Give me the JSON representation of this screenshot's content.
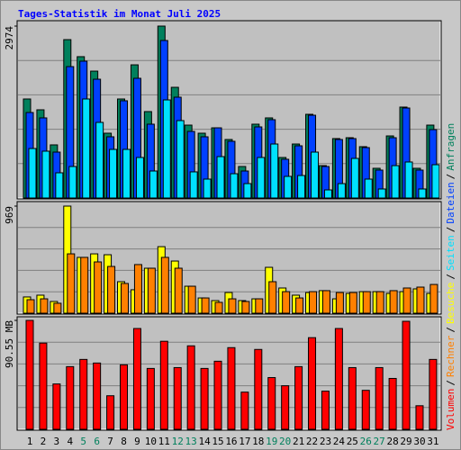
{
  "chart_data": [
    {
      "type": "bar",
      "title": "Tages-Statistik im Monat Juli 2025",
      "legend_separator": "/",
      "ylim": [
        0,
        2974
      ],
      "yticks": [
        2974
      ],
      "series": [
        {
          "name": "Anfragen",
          "color": "#00805c",
          "values": [
            1713,
            1526,
            919,
            2740,
            2445,
            2195,
            1121,
            1713,
            2304,
            1495,
            2974,
            1915,
            1261,
            1121,
            1214,
            1012,
            545,
            1277,
            1386,
            701,
            934,
            1448,
            560,
            1028,
            1043,
            888,
            514,
            1074,
            1573,
            514,
            1261
          ]
        },
        {
          "name": "Dateien",
          "color": "#0040ff",
          "values": [
            1479,
            1386,
            794,
            2273,
            2367,
            2055,
            1059,
            1682,
            2071,
            1277,
            2725,
            1744,
            1152,
            1059,
            1214,
            981,
            467,
            1230,
            1355,
            670,
            903,
            1432,
            545,
            1012,
            1028,
            872,
            483,
            1043,
            1557,
            483,
            1183
          ]
        },
        {
          "name": "Seiten",
          "color": "#00e0ff",
          "values": [
            856,
            810,
            436,
            545,
            1713,
            1308,
            841,
            841,
            701,
            467,
            1697,
            1339,
            452,
            327,
            716,
            420,
            249,
            701,
            934,
            374,
            389,
            794,
            140,
            249,
            685,
            327,
            156,
            560,
            623,
            156,
            576
          ]
        }
      ]
    },
    {
      "type": "bar",
      "ylim": [
        0,
        969
      ],
      "yticks": [
        969
      ],
      "series": [
        {
          "name": "Besuche",
          "color": "#ffff00",
          "values": [
            147,
            163,
            106,
            969,
            505,
            537,
            529,
            285,
            212,
            407,
            602,
            472,
            244,
            138,
            114,
            187,
            114,
            130,
            415,
            228,
            163,
            187,
            204,
            130,
            179,
            195,
            195,
            179,
            195,
            220,
            179
          ]
        },
        {
          "name": "Rechner",
          "color": "#ff8000",
          "values": [
            122,
            130,
            90,
            537,
            505,
            464,
            423,
            269,
            440,
            407,
            505,
            407,
            244,
            138,
            98,
            130,
            106,
            130,
            285,
            195,
            138,
            195,
            204,
            187,
            187,
            195,
            195,
            204,
            228,
            236,
            260
          ]
        }
      ]
    },
    {
      "type": "bar",
      "ylim": [
        0,
        90.55
      ],
      "yticks": [
        {
          "value": 90.55,
          "label": "90.55 MB"
        }
      ],
      "categories": [
        "1",
        "2",
        "3",
        "4",
        "5",
        "6",
        "7",
        "8",
        "9",
        "10",
        "11",
        "12",
        "13",
        "14",
        "15",
        "16",
        "17",
        "18",
        "19",
        "20",
        "21",
        "22",
        "23",
        "24",
        "25",
        "26",
        "27",
        "28",
        "29",
        "30",
        "31"
      ],
      "highlight": {
        "categories": [
          "5",
          "6",
          "12",
          "13",
          "19",
          "20",
          "26",
          "27"
        ],
        "color": "#00805c"
      },
      "series": [
        {
          "name": "Volumen",
          "color": "#ff0000",
          "values": [
            90.55,
            71.7,
            37.7,
            52.1,
            58.1,
            55.1,
            27.9,
            53.6,
            83.8,
            50.6,
            73.2,
            51.3,
            69.4,
            50.6,
            56.6,
            67.9,
            30.9,
            66.4,
            43.0,
            36.2,
            52.1,
            76.2,
            31.7,
            83.8,
            51.3,
            32.4,
            51.3,
            42.3,
            89.8,
            19.6,
            58.1
          ]
        }
      ]
    }
  ]
}
